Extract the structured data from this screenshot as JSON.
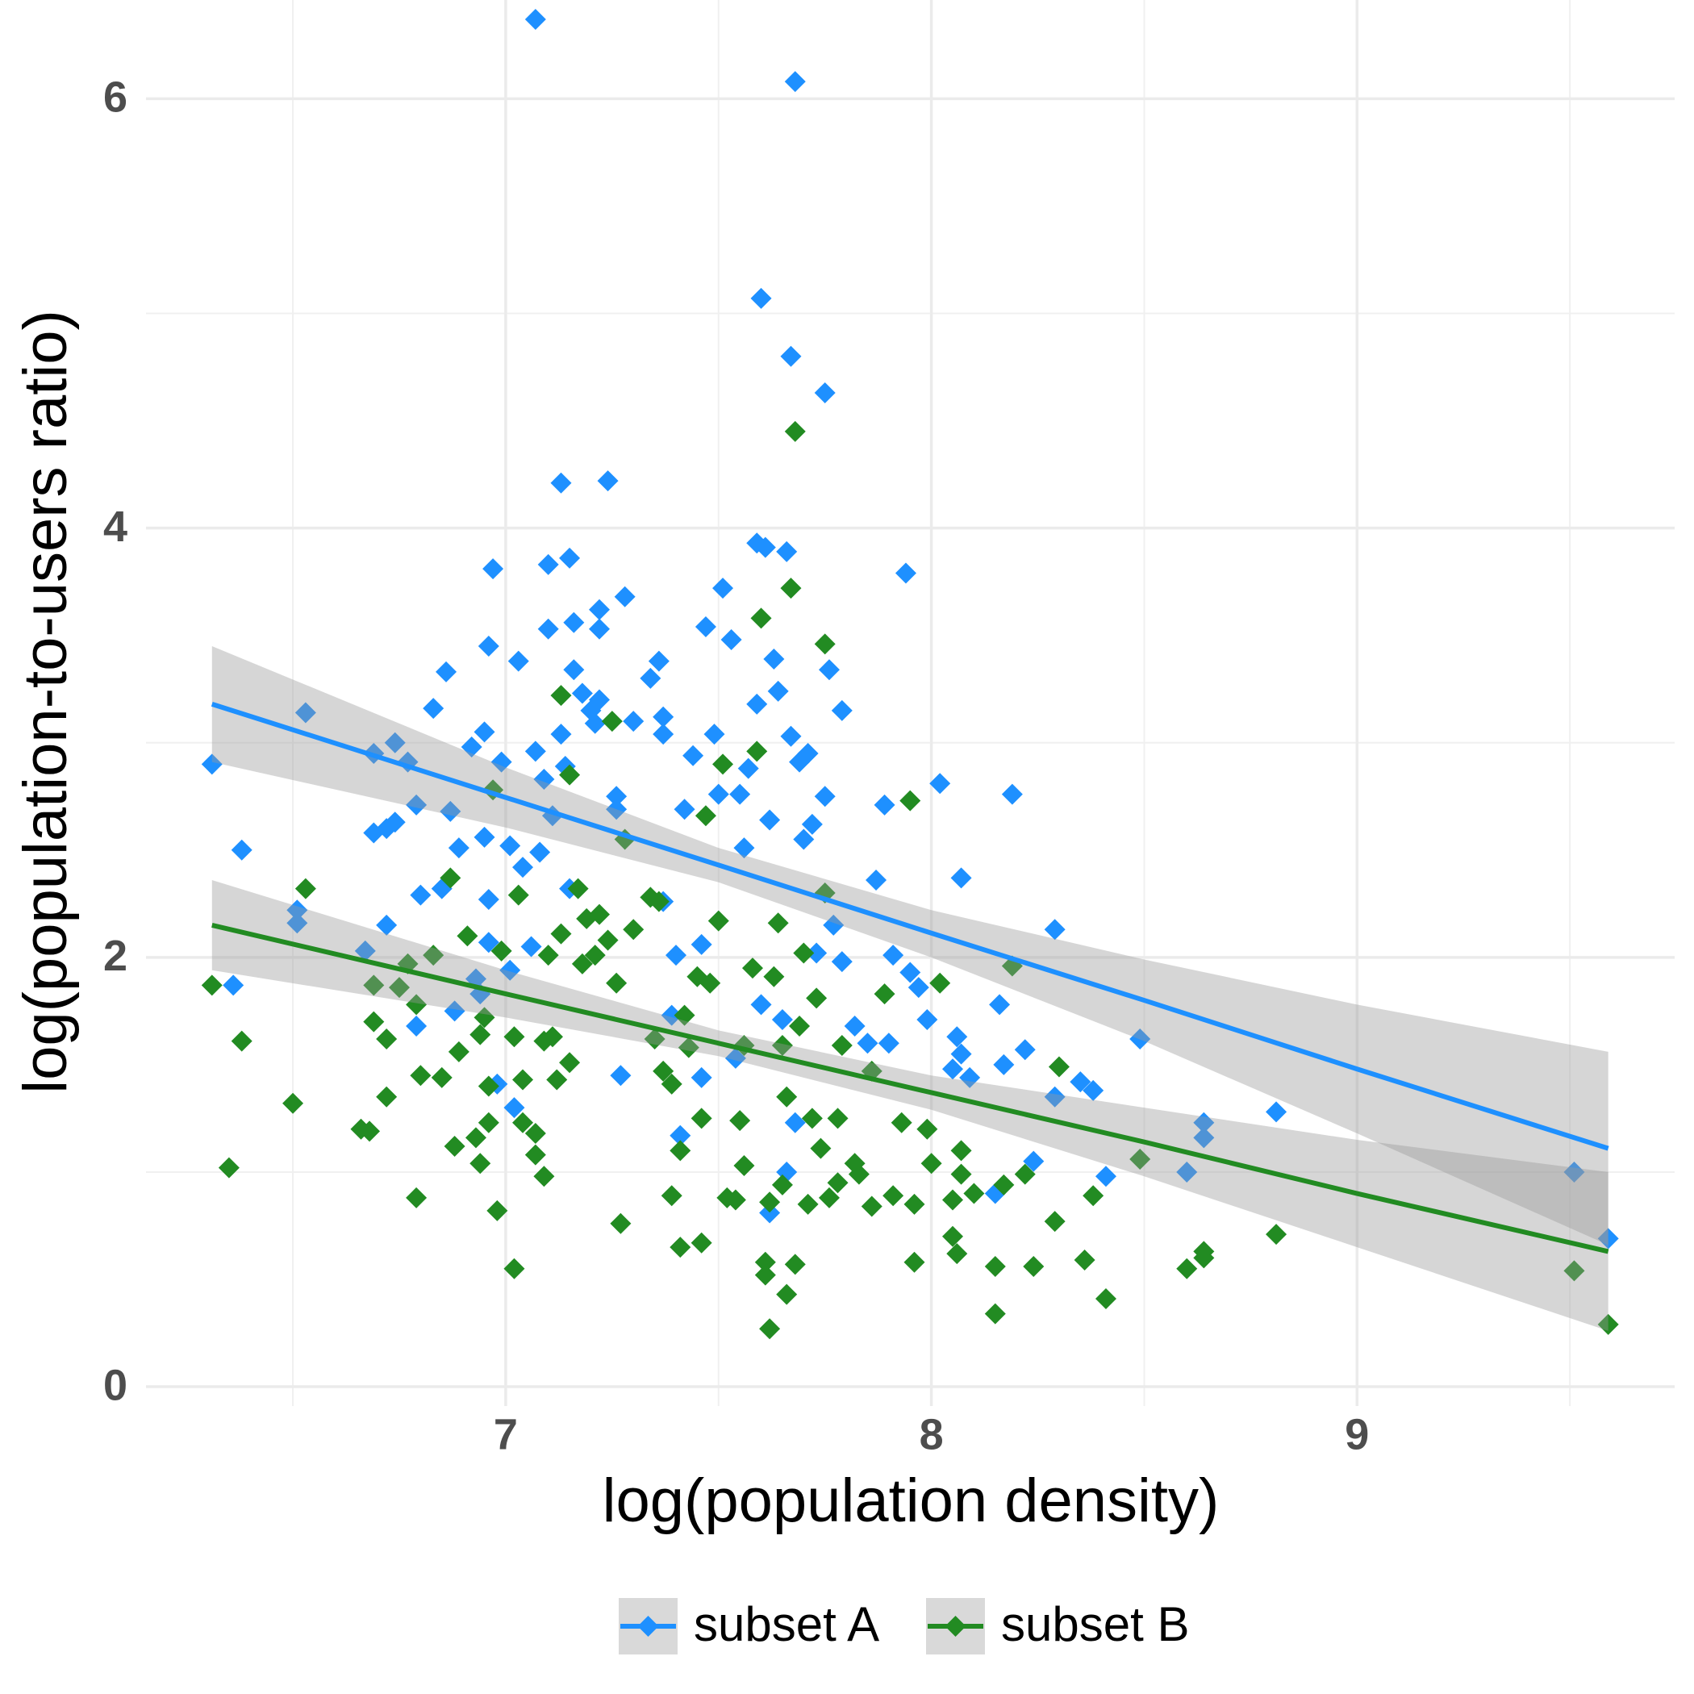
{
  "chart_data": {
    "type": "scatter",
    "x_label": "log(population density)",
    "y_label": "log(population-to-users ratio)",
    "xlim": [
      6.155,
      9.746
    ],
    "ylim": [
      -0.09,
      6.46
    ],
    "xticks": [
      7,
      8,
      9
    ],
    "yticks": [
      0,
      2,
      4,
      6
    ],
    "x_minor_grid": [
      6.5,
      7.5,
      8.5,
      9.5
    ],
    "y_minor_grid": [
      1,
      3,
      5
    ],
    "grid": true,
    "legend": "bottom",
    "band_color": "#999999",
    "series": [
      {
        "name": "subset A",
        "color": "#1e90ff",
        "x": [
          6.31,
          6.36,
          6.38,
          6.53,
          6.51,
          6.51,
          6.67,
          6.69,
          6.72,
          6.69,
          6.72,
          6.74,
          6.74,
          6.77,
          6.79,
          6.8,
          6.79,
          6.83,
          6.85,
          6.86,
          6.87,
          6.89,
          6.88,
          6.92,
          6.95,
          6.95,
          6.96,
          6.96,
          6.97,
          6.99,
          6.96,
          6.93,
          6.94,
          6.98,
          7.01,
          7.01,
          7.02,
          7.03,
          7.04,
          7.06,
          7.07,
          7.08,
          7.09,
          7.1,
          7.1,
          7.11,
          7.13,
          7.13,
          7.14,
          7.15,
          7.16,
          7.16,
          7.15,
          7.18,
          7.2,
          7.21,
          7.22,
          7.22,
          7.22,
          7.24,
          7.26,
          7.26,
          7.27,
          7.28,
          7.3,
          7.34,
          7.36,
          7.37,
          7.37,
          7.37,
          7.39,
          7.4,
          7.41,
          7.42,
          7.44,
          7.46,
          7.46,
          7.47,
          7.49,
          7.5,
          7.51,
          7.53,
          7.54,
          7.55,
          7.56,
          7.57,
          7.59,
          7.59,
          7.6,
          7.6,
          7.61,
          7.62,
          7.62,
          7.63,
          7.64,
          7.65,
          7.66,
          7.66,
          7.67,
          7.67,
          7.68,
          7.68,
          7.69,
          7.7,
          7.71,
          7.72,
          7.73,
          7.75,
          7.75,
          7.76,
          7.77,
          7.79,
          7.79,
          7.82,
          7.85,
          7.87,
          7.89,
          7.9,
          7.91,
          7.94,
          7.95,
          7.97,
          7.99,
          8.02,
          8.05,
          8.06,
          8.07,
          8.07,
          8.09,
          8.15,
          8.16,
          8.17,
          8.19,
          8.22,
          8.24,
          8.29,
          8.29,
          8.35,
          8.38,
          8.41,
          8.49,
          8.6,
          8.64,
          8.64,
          8.81,
          9.51,
          9.59,
          7.07
        ],
        "values": [
          2.9,
          1.87,
          2.5,
          3.14,
          2.16,
          2.22,
          2.03,
          2.95,
          2.15,
          2.58,
          2.6,
          2.63,
          3.0,
          2.91,
          2.71,
          2.29,
          1.68,
          3.16,
          2.32,
          3.33,
          2.68,
          2.51,
          1.75,
          2.98,
          3.05,
          2.56,
          3.45,
          2.27,
          3.81,
          2.91,
          2.07,
          1.9,
          1.83,
          1.41,
          2.52,
          1.94,
          1.3,
          3.38,
          2.42,
          2.05,
          2.96,
          2.49,
          2.83,
          3.83,
          3.53,
          2.66,
          4.21,
          3.04,
          2.89,
          3.86,
          3.56,
          3.34,
          2.32,
          3.23,
          3.15,
          3.09,
          3.62,
          3.53,
          3.2,
          4.22,
          2.75,
          2.69,
          1.45,
          3.68,
          3.1,
          3.3,
          3.38,
          3.12,
          3.04,
          2.26,
          1.73,
          2.01,
          1.17,
          2.69,
          2.94,
          2.06,
          1.44,
          3.54,
          3.04,
          2.76,
          3.72,
          3.48,
          1.53,
          2.76,
          2.51,
          2.88,
          3.18,
          3.93,
          5.07,
          1.78,
          3.91,
          2.64,
          0.81,
          3.39,
          3.24,
          1.71,
          1.0,
          3.89,
          4.8,
          3.03,
          6.08,
          1.23,
          2.91,
          2.55,
          2.95,
          2.62,
          2.02,
          4.63,
          2.75,
          3.34,
          2.15,
          3.15,
          1.98,
          1.68,
          1.6,
          2.36,
          2.71,
          1.6,
          2.01,
          3.79,
          1.93,
          1.86,
          1.71,
          2.81,
          1.48,
          1.63,
          2.37,
          1.55,
          1.44,
          0.9,
          1.78,
          1.5,
          2.76,
          1.57,
          1.05,
          1.35,
          2.13,
          1.42,
          1.38,
          0.98,
          1.62,
          1.0,
          1.23,
          1.16,
          1.28,
          1.0,
          0.69,
          6.37
        ],
        "fit": {
          "x": [
            6.31,
            7.0,
            7.5,
            8.0,
            8.5,
            9.0,
            9.59
          ],
          "values": [
            3.18,
            2.745,
            2.43,
            2.113,
            1.8,
            1.48,
            1.11
          ],
          "lower": [
            2.91,
            2.605,
            2.35,
            2.0,
            1.61,
            1.18,
            0.66
          ],
          "upper": [
            3.45,
            2.885,
            2.51,
            2.22,
            1.99,
            1.78,
            1.56
          ]
        }
      },
      {
        "name": "subset B",
        "color": "#228b22",
        "x": [
          6.31,
          6.35,
          6.38,
          6.5,
          6.53,
          6.66,
          6.68,
          6.69,
          6.69,
          6.72,
          6.72,
          6.75,
          6.77,
          6.79,
          6.79,
          6.8,
          6.83,
          6.85,
          6.87,
          6.88,
          6.89,
          6.91,
          6.93,
          6.94,
          6.94,
          6.95,
          6.96,
          6.96,
          6.98,
          6.97,
          6.99,
          7.02,
          7.02,
          7.03,
          7.04,
          7.04,
          7.07,
          7.07,
          7.09,
          7.09,
          7.1,
          7.11,
          7.12,
          7.13,
          7.13,
          7.15,
          7.15,
          7.17,
          7.18,
          7.19,
          7.21,
          7.22,
          7.24,
          7.25,
          7.26,
          7.27,
          7.28,
          7.3,
          7.34,
          7.35,
          7.36,
          7.37,
          7.39,
          7.39,
          7.41,
          7.41,
          7.42,
          7.43,
          7.45,
          7.46,
          7.46,
          7.47,
          7.48,
          7.5,
          7.51,
          7.52,
          7.54,
          7.55,
          7.56,
          7.56,
          7.58,
          7.59,
          7.6,
          7.61,
          7.61,
          7.62,
          7.62,
          7.63,
          7.64,
          7.65,
          7.65,
          7.66,
          7.66,
          7.67,
          7.68,
          7.68,
          7.69,
          7.7,
          7.71,
          7.72,
          7.73,
          7.74,
          7.75,
          7.75,
          7.76,
          7.78,
          7.78,
          7.79,
          7.82,
          7.83,
          7.86,
          7.86,
          7.89,
          7.91,
          7.93,
          7.95,
          7.96,
          7.96,
          7.99,
          8.0,
          8.02,
          8.05,
          8.05,
          8.06,
          8.07,
          8.07,
          8.1,
          8.15,
          8.15,
          8.17,
          8.19,
          8.22,
          8.24,
          8.29,
          8.3,
          8.36,
          8.38,
          8.41,
          8.49,
          8.6,
          8.64,
          8.64,
          8.81,
          9.51,
          9.59
        ],
        "values": [
          1.87,
          1.02,
          1.61,
          1.32,
          2.32,
          1.2,
          1.19,
          1.7,
          1.87,
          1.62,
          1.35,
          1.86,
          1.97,
          0.88,
          1.78,
          1.45,
          2.01,
          1.44,
          2.37,
          1.12,
          1.56,
          2.1,
          1.16,
          1.04,
          1.64,
          1.72,
          1.23,
          1.4,
          0.82,
          2.78,
          2.03,
          0.55,
          1.63,
          2.29,
          1.43,
          1.23,
          1.18,
          1.08,
          1.61,
          0.98,
          2.01,
          1.63,
          1.43,
          3.22,
          2.11,
          1.51,
          2.85,
          2.32,
          1.97,
          2.18,
          2.01,
          2.2,
          2.08,
          3.1,
          1.88,
          0.76,
          2.55,
          2.13,
          2.28,
          1.62,
          2.26,
          1.47,
          0.89,
          1.41,
          0.65,
          1.1,
          1.73,
          1.58,
          1.91,
          0.67,
          1.25,
          2.66,
          1.88,
          2.17,
          2.9,
          0.88,
          0.87,
          1.24,
          1.59,
          1.03,
          1.95,
          2.96,
          3.58,
          0.58,
          0.52,
          0.86,
          0.27,
          1.91,
          2.16,
          1.59,
          0.94,
          0.43,
          1.35,
          3.72,
          4.45,
          0.57,
          1.68,
          2.02,
          0.85,
          1.25,
          1.81,
          1.11,
          3.46,
          2.3,
          0.88,
          0.95,
          1.25,
          1.59,
          1.04,
          0.99,
          0.84,
          1.47,
          1.83,
          0.89,
          1.23,
          2.73,
          0.85,
          0.58,
          1.2,
          1.04,
          1.88,
          0.87,
          0.7,
          0.62,
          1.1,
          0.99,
          0.9,
          0.34,
          0.56,
          0.94,
          1.96,
          0.99,
          0.56,
          0.77,
          1.49,
          0.59,
          0.89,
          0.41,
          1.06,
          0.55,
          0.63,
          0.6,
          0.71,
          0.54,
          0.29
        ],
        "fit": {
          "x": [
            6.31,
            7.0,
            7.5,
            8.0,
            8.5,
            9.0,
            9.59
          ],
          "values": [
            2.15,
            1.83,
            1.6,
            1.37,
            1.14,
            0.9,
            0.63
          ],
          "lower": [
            1.94,
            1.72,
            1.54,
            1.29,
            0.98,
            0.65,
            0.26
          ],
          "upper": [
            2.36,
            1.94,
            1.66,
            1.45,
            1.3,
            1.15,
            1.0
          ]
        }
      }
    ]
  }
}
